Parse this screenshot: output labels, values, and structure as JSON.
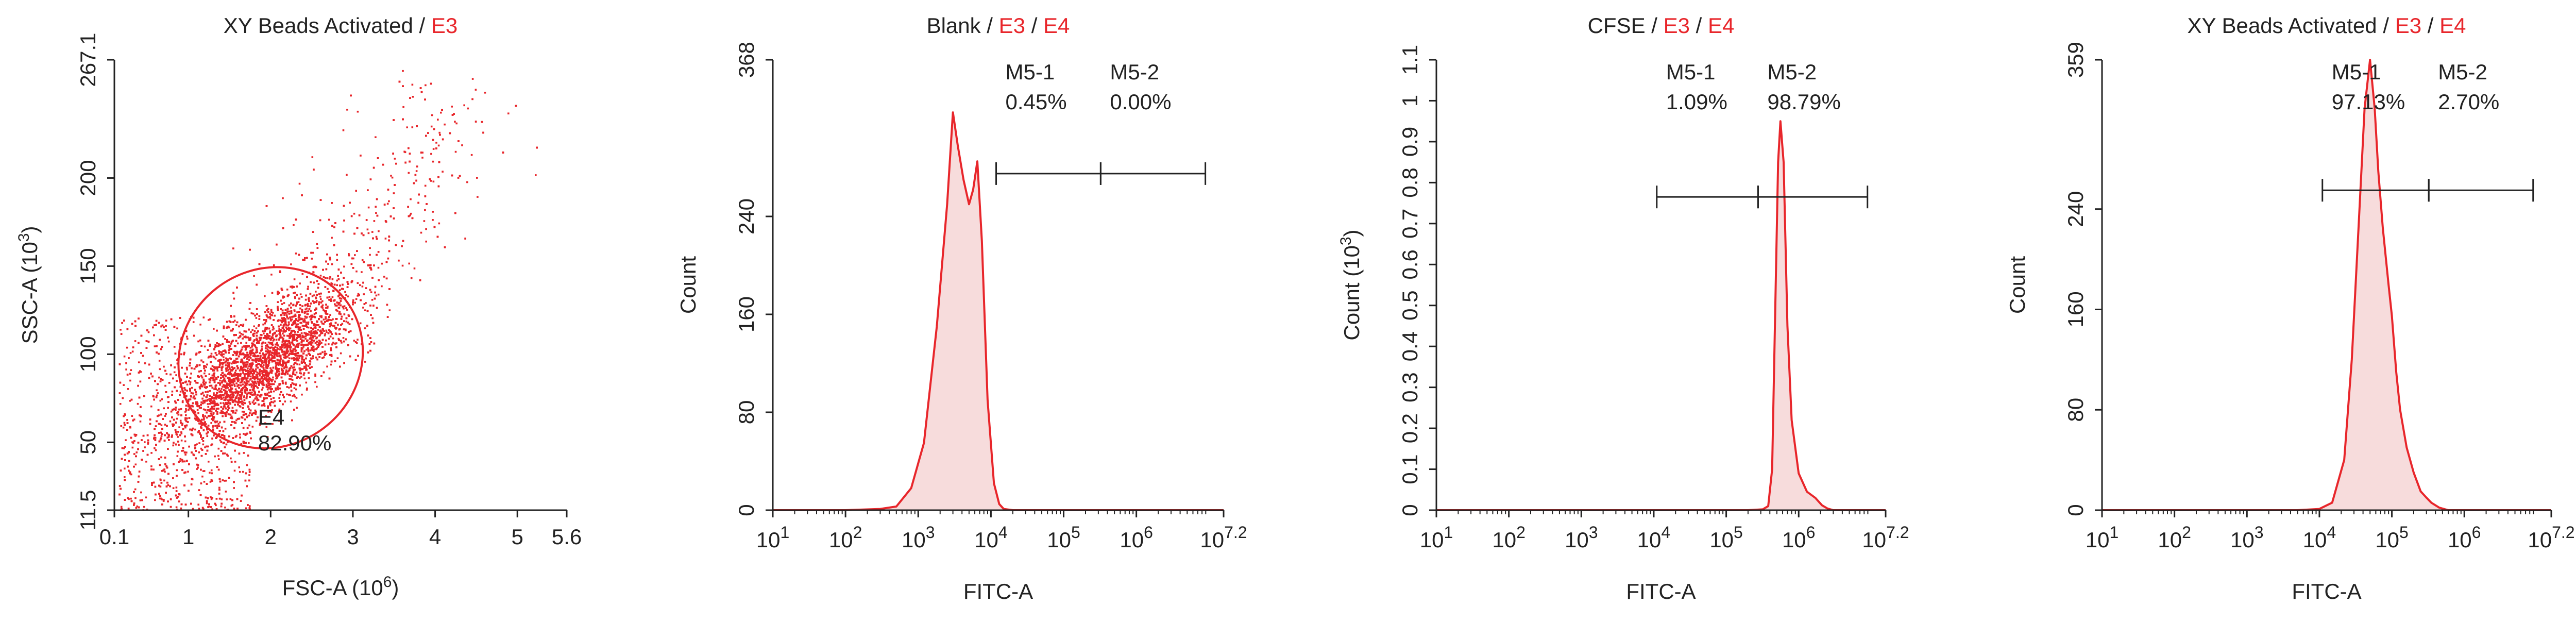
{
  "colors": {
    "accent": "#e8262b",
    "axis": "#222222",
    "text": "#222222",
    "fill": "#f7dcdc"
  },
  "chart_data": [
    {
      "type": "scatter",
      "title_parts": [
        {
          "text": "XY Beads Activated",
          "color": "#222222"
        },
        {
          "text": " / ",
          "color": "#222222"
        },
        {
          "text": "E3",
          "color": "#e8262b"
        }
      ],
      "xlabel": "FSC-A (10^6)",
      "ylabel": "SSC-A (10^3)",
      "xlim": [
        0.1,
        5.6
      ],
      "ylim": [
        11.5,
        267.1
      ],
      "x_ticks": [
        "0.1",
        "1",
        "2",
        "3",
        "4",
        "5",
        "5.6"
      ],
      "y_ticks": [
        "11.5",
        "50",
        "100",
        "150",
        "200",
        "267.1"
      ],
      "gate": {
        "name": "E4",
        "percent": "82.90%",
        "center": [
          2.0,
          98
        ],
        "semi_axes_data": [
          1.15,
          50
        ],
        "rotation_deg": -38
      },
      "points": {
        "count_estimate": 9000,
        "cluster_center": [
          1.9,
          95
        ],
        "distribution": "dense elliptical cluster with tail toward upper right"
      }
    },
    {
      "type": "area",
      "title_parts": [
        {
          "text": "Blank",
          "color": "#222222"
        },
        {
          "text": " / ",
          "color": "#222222"
        },
        {
          "text": "E3",
          "color": "#e8262b"
        },
        {
          "text": " / ",
          "color": "#222222"
        },
        {
          "text": "E4",
          "color": "#e8262b"
        }
      ],
      "xlabel": "FITC-A",
      "ylabel": "Count",
      "x_scale": "log",
      "xlim": [
        10,
        15848931
      ],
      "ylim": [
        0,
        368
      ],
      "x_ticks": [
        {
          "base": "10",
          "exp": "1"
        },
        {
          "base": "10",
          "exp": "2"
        },
        {
          "base": "10",
          "exp": "3"
        },
        {
          "base": "10",
          "exp": "4"
        },
        {
          "base": "10",
          "exp": "5"
        },
        {
          "base": "10",
          "exp": "6"
        },
        {
          "base": "10",
          "exp": "7.2"
        }
      ],
      "y_ticks": [
        "0",
        "80",
        "160",
        "240",
        "368"
      ],
      "markers": [
        {
          "name": "M5-1",
          "percent": "0.45%",
          "range": [
            11800,
            323000
          ]
        },
        {
          "name": "M5-2",
          "percent": "0.00%",
          "range": [
            323000,
            8900000
          ]
        }
      ],
      "marker_y": 275,
      "x": [
        10,
        100,
        300,
        500,
        800,
        1200,
        1800,
        2500,
        3000,
        3500,
        4200,
        5000,
        5700,
        6500,
        7500,
        9000,
        11000,
        13000,
        15000,
        20000,
        100000,
        15848931
      ],
      "y": [
        0,
        0,
        1,
        3,
        18,
        55,
        150,
        250,
        325,
        298,
        270,
        250,
        262,
        285,
        220,
        90,
        22,
        5,
        1,
        0,
        0,
        0
      ]
    },
    {
      "type": "area",
      "title_parts": [
        {
          "text": "CFSE",
          "color": "#222222"
        },
        {
          "text": " / ",
          "color": "#222222"
        },
        {
          "text": "E3",
          "color": "#e8262b"
        },
        {
          "text": " / ",
          "color": "#222222"
        },
        {
          "text": "E4",
          "color": "#e8262b"
        }
      ],
      "xlabel": "FITC-A",
      "ylabel": "Count (10^3)",
      "x_scale": "log",
      "xlim": [
        10,
        15848931
      ],
      "ylim": [
        0,
        1.1
      ],
      "x_ticks": [
        {
          "base": "10",
          "exp": "1"
        },
        {
          "base": "10",
          "exp": "2"
        },
        {
          "base": "10",
          "exp": "3"
        },
        {
          "base": "10",
          "exp": "4"
        },
        {
          "base": "10",
          "exp": "5"
        },
        {
          "base": "10",
          "exp": "6"
        },
        {
          "base": "10",
          "exp": "7.2"
        }
      ],
      "y_ticks": [
        "0",
        "0.1",
        "0.2",
        "0.3",
        "0.4",
        "0.5",
        "0.6",
        "0.7",
        "0.8",
        "0.9",
        "1",
        "1.1"
      ],
      "markers": [
        {
          "name": "M5-1",
          "percent": "1.09%",
          "range": [
            11000,
            275000
          ]
        },
        {
          "name": "M5-2",
          "percent": "98.79%",
          "range": [
            275000,
            8900000
          ]
        }
      ],
      "marker_y": 0.765,
      "x": [
        10,
        100000,
        200000,
        320000,
        380000,
        430000,
        470000,
        520000,
        560000,
        620000,
        700000,
        800000,
        1000000,
        1300000,
        1700000,
        2100000,
        2500000,
        3000000,
        15848931
      ],
      "y": [
        0,
        0,
        0,
        0.002,
        0.01,
        0.1,
        0.45,
        0.85,
        0.95,
        0.85,
        0.45,
        0.22,
        0.09,
        0.045,
        0.03,
        0.012,
        0.004,
        0,
        0
      ]
    },
    {
      "type": "area",
      "title_parts": [
        {
          "text": "XY Beads Activated",
          "color": "#222222"
        },
        {
          "text": " / ",
          "color": "#222222"
        },
        {
          "text": "E3",
          "color": "#e8262b"
        },
        {
          "text": " / ",
          "color": "#222222"
        },
        {
          "text": "E4",
          "color": "#e8262b"
        }
      ],
      "xlabel": "FITC-A",
      "ylabel": "Count",
      "x_scale": "log",
      "xlim": [
        10,
        15848931
      ],
      "ylim": [
        0,
        359
      ],
      "x_ticks": [
        {
          "base": "10",
          "exp": "1"
        },
        {
          "base": "10",
          "exp": "2"
        },
        {
          "base": "10",
          "exp": "3"
        },
        {
          "base": "10",
          "exp": "4"
        },
        {
          "base": "10",
          "exp": "5"
        },
        {
          "base": "10",
          "exp": "6"
        },
        {
          "base": "10",
          "exp": "7.2"
        }
      ],
      "y_ticks": [
        "0",
        "80",
        "160",
        "240",
        "359"
      ],
      "markers": [
        {
          "name": "M5-1",
          "percent": "97.13%",
          "range": [
            11000,
            323000
          ]
        },
        {
          "name": "M5-2",
          "percent": "2.70%",
          "range": [
            323000,
            8900000
          ]
        }
      ],
      "marker_y": 255,
      "x": [
        10,
        5000,
        10000,
        15000,
        22000,
        28000,
        35000,
        42000,
        50000,
        58000,
        65000,
        75000,
        90000,
        100000,
        115000,
        130000,
        160000,
        200000,
        250000,
        300000,
        350000,
        450000,
        600000,
        15848931
      ],
      "y": [
        0,
        0,
        1,
        6,
        40,
        120,
        230,
        320,
        359,
        320,
        270,
        225,
        180,
        155,
        110,
        80,
        50,
        30,
        15,
        10,
        6,
        2,
        0,
        0
      ]
    }
  ]
}
